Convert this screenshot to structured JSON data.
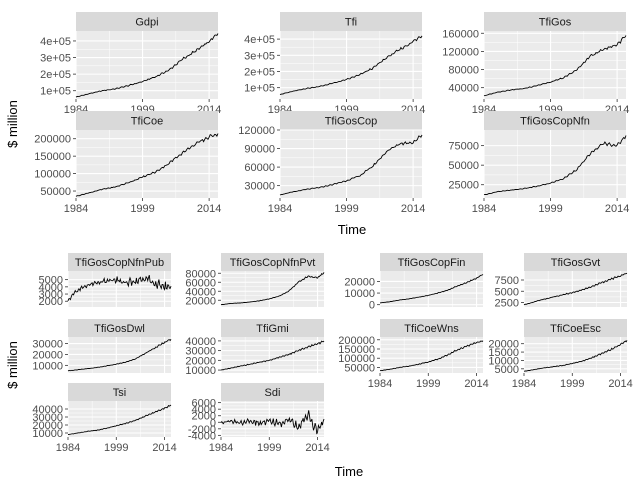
{
  "figure": {
    "background": "#ffffff",
    "panel_bg": "#ebebeb",
    "strip_bg": "#d9d9d9",
    "grid_color": "#ffffff",
    "line_color": "#000000"
  },
  "chart_data": [
    {
      "type": "line",
      "xlabel": "Time",
      "ylabel": "$ million",
      "facets": [
        {
          "name": "Gdpi",
          "xlim": [
            1984,
            2016
          ],
          "ylim": [
            50000,
            460000
          ],
          "yticks": [
            100000,
            200000,
            300000,
            400000
          ],
          "ytick_labels": [
            "1e+05",
            "2e+05",
            "3e+05",
            "4e+05"
          ],
          "xticks": [
            1984,
            1999,
            2014
          ],
          "xtick_labels": [
            "1984",
            "1999",
            "2014"
          ],
          "series": {
            "x": [
              1984,
              1987,
              1990,
              1993,
              1996,
              1999,
              2002,
              2005,
              2008,
              2011,
              2014,
              2016
            ],
            "y": [
              62000,
              82000,
              100000,
              112000,
              132000,
              155000,
              185000,
              225000,
              290000,
              340000,
              395000,
              445000
            ]
          }
        },
        {
          "name": "Tfi",
          "xlim": [
            1984,
            2016
          ],
          "ylim": [
            30000,
            450000
          ],
          "yticks": [
            100000,
            200000,
            300000,
            400000
          ],
          "ytick_labels": [
            "1e+05",
            "2e+05",
            "3e+05",
            "4e+05"
          ],
          "xticks": [
            1984,
            1999,
            2014
          ],
          "xtick_labels": [
            "1984",
            "1999",
            "2014"
          ],
          "series": {
            "x": [
              1984,
              1987,
              1990,
              1993,
              1996,
              1999,
              2002,
              2005,
              2008,
              2011,
              2014,
              2016
            ],
            "y": [
              58000,
              78000,
              95000,
              108000,
              128000,
              150000,
              180000,
              222000,
              285000,
              335000,
              385000,
              420000
            ]
          }
        },
        {
          "name": "TfiGos",
          "xlim": [
            1984,
            2016
          ],
          "ylim": [
            15000,
            165000
          ],
          "yticks": [
            40000,
            80000,
            120000,
            160000
          ],
          "ytick_labels": [
            "40000",
            "80000",
            "120000",
            "160000"
          ],
          "xticks": [
            1984,
            1999,
            2014
          ],
          "xtick_labels": [
            "1984",
            "1999",
            "2014"
          ],
          "series": {
            "x": [
              1984,
              1987,
              1990,
              1993,
              1996,
              1999,
              2002,
              2005,
              2008,
              2011,
              2014,
              2016
            ],
            "y": [
              22000,
              30000,
              35000,
              38000,
              45000,
              52000,
              62000,
              80000,
              110000,
              125000,
              135000,
              155000
            ]
          }
        },
        {
          "name": "TfiCoe",
          "xlim": [
            1984,
            2016
          ],
          "ylim": [
            30000,
            225000
          ],
          "yticks": [
            50000,
            100000,
            150000,
            200000
          ],
          "ytick_labels": [
            "50000",
            "100000",
            "150000",
            "200000"
          ],
          "xticks": [
            1984,
            1999,
            2014
          ],
          "xtick_labels": [
            "1984",
            "1999",
            "2014"
          ],
          "series": {
            "x": [
              1984,
              1987,
              1990,
              1993,
              1996,
              1999,
              2002,
              2005,
              2008,
              2011,
              2014,
              2016
            ],
            "y": [
              35000,
              45000,
              55000,
              62000,
              75000,
              90000,
              105000,
              130000,
              160000,
              185000,
              205000,
              215000
            ]
          }
        },
        {
          "name": "TfiGosCop",
          "xlim": [
            1984,
            2016
          ],
          "ylim": [
            10000,
            120000
          ],
          "yticks": [
            30000,
            60000,
            90000,
            120000
          ],
          "ytick_labels": [
            "30000",
            "60000",
            "90000",
            "120000"
          ],
          "xticks": [
            1984,
            1999,
            2014
          ],
          "xtick_labels": [
            "1984",
            "1999",
            "2014"
          ],
          "series": {
            "x": [
              1984,
              1987,
              1990,
              1993,
              1996,
              1999,
              2002,
              2005,
              2008,
              2011,
              2014,
              2016
            ],
            "y": [
              15000,
              20000,
              24000,
              27000,
              32000,
              38000,
              46000,
              62000,
              85000,
              98000,
              100000,
              112000
            ]
          }
        },
        {
          "name": "TfiGosCopNfn",
          "xlim": [
            1984,
            2016
          ],
          "ylim": [
            8000,
            95000
          ],
          "yticks": [
            25000,
            50000,
            75000
          ],
          "ytick_labels": [
            "25000",
            "50000",
            "75000"
          ],
          "xticks": [
            1984,
            1999,
            2014
          ],
          "xtick_labels": [
            "1984",
            "1999",
            "2014"
          ],
          "series": {
            "x": [
              1984,
              1987,
              1990,
              1993,
              1996,
              1999,
              2002,
              2005,
              2008,
              2011,
              2014,
              2016
            ],
            "y": [
              12000,
              16000,
              18000,
              20000,
              23000,
              27000,
              33000,
              45000,
              65000,
              78000,
              75000,
              88000
            ]
          }
        }
      ]
    },
    {
      "type": "line",
      "xlabel": "Time",
      "ylabel": "$ million",
      "facets": [
        {
          "name": "TfiGosCopNfnPub",
          "xlim": [
            1984,
            2016
          ],
          "ylim": [
            1200,
            6200
          ],
          "yticks": [
            2000,
            3000,
            4000,
            5000
          ],
          "ytick_labels": [
            "2000",
            "3000",
            "4000",
            "5000"
          ],
          "xticks": [],
          "xtick_labels": [],
          "series": {
            "x": [
              1984,
              1986,
              1988,
              1990,
              1993,
              1996,
              1999,
              2002,
              2005,
              2008,
              2011,
              2014,
              2016
            ],
            "y": [
              2000,
              3200,
              3800,
              4200,
              4600,
              4800,
              5000,
              4600,
              4800,
              5200,
              4500,
              4000,
              4100
            ]
          }
        },
        {
          "name": "TfiGosCopNfnPvt",
          "xlim": [
            1984,
            2016
          ],
          "ylim": [
            5000,
            85000
          ],
          "yticks": [
            20000,
            40000,
            60000,
            80000
          ],
          "ytick_labels": [
            "20000",
            "40000",
            "60000",
            "80000"
          ],
          "xticks": [],
          "xtick_labels": [],
          "series": {
            "x": [
              1984,
              1987,
              1990,
              1993,
              1996,
              1999,
              2002,
              2005,
              2008,
              2011,
              2014,
              2016
            ],
            "y": [
              10000,
              13000,
              14000,
              16000,
              19000,
              23000,
              29000,
              40000,
              60000,
              73000,
              70000,
              82000
            ]
          }
        },
        {
          "name": "TfiGosCopFin",
          "xlim": [
            1984,
            2016
          ],
          "ylim": [
            -2000,
            29000
          ],
          "yticks": [
            0,
            10000,
            20000
          ],
          "ytick_labels": [
            "0",
            "10000",
            "20000"
          ],
          "xticks": [],
          "xtick_labels": [],
          "series": {
            "x": [
              1984,
              1987,
              1990,
              1993,
              1996,
              1999,
              2002,
              2005,
              2008,
              2011,
              2014,
              2016
            ],
            "y": [
              1500,
              2500,
              4000,
              5000,
              6500,
              8000,
              10000,
              12500,
              16000,
              19000,
              23000,
              26000
            ]
          }
        },
        {
          "name": "TfiGosGvt",
          "xlim": [
            1984,
            2016
          ],
          "ylim": [
            1500,
            9500
          ],
          "yticks": [
            2500,
            5000,
            7500
          ],
          "ytick_labels": [
            "2500",
            "5000",
            "7500"
          ],
          "xticks": [],
          "xtick_labels": [],
          "series": {
            "x": [
              1984,
              1987,
              1990,
              1993,
              1996,
              1999,
              2002,
              2005,
              2008,
              2011,
              2014,
              2016
            ],
            "y": [
              2000,
              2600,
              3200,
              3700,
              4200,
              4700,
              5300,
              6000,
              6900,
              7700,
              8400,
              9000
            ]
          }
        },
        {
          "name": "TfiGosDwl",
          "xlim": [
            1984,
            2016
          ],
          "ylim": [
            3000,
            36000
          ],
          "yticks": [
            10000,
            20000,
            30000
          ],
          "ytick_labels": [
            "10000",
            "20000",
            "30000"
          ],
          "xticks": [],
          "xtick_labels": [],
          "series": {
            "x": [
              1984,
              1987,
              1990,
              1993,
              1996,
              1999,
              2002,
              2005,
              2008,
              2011,
              2014,
              2016
            ],
            "y": [
              5000,
              6000,
              7000,
              8000,
              9500,
              11000,
              13000,
              16000,
              21000,
              26000,
              31000,
              34000
            ]
          }
        },
        {
          "name": "TfiGmi",
          "xlim": [
            1984,
            2016
          ],
          "ylim": [
            7000,
            44000
          ],
          "yticks": [
            10000,
            20000,
            30000,
            40000
          ],
          "ytick_labels": [
            "10000",
            "20000",
            "30000",
            "40000"
          ],
          "xticks": [],
          "xtick_labels": [],
          "series": {
            "x": [
              1984,
              1987,
              1990,
              1993,
              1996,
              1999,
              2002,
              2005,
              2008,
              2011,
              2014,
              2016
            ],
            "y": [
              10000,
              12000,
              14000,
              16000,
              18000,
              20000,
              23000,
              26000,
              30000,
              34000,
              37000,
              40000
            ]
          }
        },
        {
          "name": "TfiCoeWns",
          "xlim": [
            1984,
            2016
          ],
          "ylim": [
            20000,
            215000
          ],
          "yticks": [
            50000,
            100000,
            150000,
            200000
          ],
          "ytick_labels": [
            "50000",
            "100000",
            "150000",
            "200000"
          ],
          "xticks": [
            1984,
            1999,
            2014
          ],
          "xtick_labels": [
            "1984",
            "1999",
            "2014"
          ],
          "series": {
            "x": [
              1984,
              1987,
              1990,
              1993,
              1996,
              1999,
              2002,
              2005,
              2008,
              2011,
              2014,
              2016
            ],
            "y": [
              32000,
              40000,
              50000,
              57000,
              67000,
              80000,
              95000,
              118000,
              145000,
              165000,
              185000,
              195000
            ]
          }
        },
        {
          "name": "TfiCoeEsc",
          "xlim": [
            1984,
            2016
          ],
          "ylim": [
            2500,
            24000
          ],
          "yticks": [
            5000,
            10000,
            15000,
            20000
          ],
          "ytick_labels": [
            "5000",
            "10000",
            "15000",
            "20000"
          ],
          "xticks": [
            1984,
            1999,
            2014
          ],
          "xtick_labels": [
            "1984",
            "1999",
            "2014"
          ],
          "series": {
            "x": [
              1984,
              1987,
              1990,
              1993,
              1996,
              1999,
              2002,
              2005,
              2008,
              2011,
              2014,
              2016
            ],
            "y": [
              3500,
              4500,
              5500,
              6200,
              7000,
              8200,
              9500,
              11500,
              14000,
              16500,
              19500,
              22000
            ]
          }
        },
        {
          "name": "Tsi",
          "xlim": [
            1984,
            2016
          ],
          "ylim": [
            5000,
            50000
          ],
          "yticks": [
            10000,
            20000,
            30000,
            40000
          ],
          "ytick_labels": [
            "10000",
            "20000",
            "30000",
            "40000"
          ],
          "xticks": [
            1984,
            1999,
            2014
          ],
          "xtick_labels": [
            "1984",
            "1999",
            "2014"
          ],
          "series": {
            "x": [
              1984,
              1987,
              1990,
              1993,
              1996,
              1999,
              2002,
              2005,
              2008,
              2011,
              2014,
              2016
            ],
            "y": [
              8000,
              10000,
              12000,
              13500,
              16000,
              19000,
              22000,
              26000,
              31000,
              36000,
              41000,
              45000
            ]
          }
        },
        {
          "name": "Sdi",
          "xlim": [
            1984,
            2016
          ],
          "ylim": [
            -4500,
            6500
          ],
          "yticks": [
            -4000,
            -2000,
            0,
            2000,
            4000,
            6000
          ],
          "ytick_labels": [
            "-4000",
            "-2000",
            "0",
            "2000",
            "4000",
            "6000"
          ],
          "xticks": [
            1984,
            1999,
            2014
          ],
          "xtick_labels": [
            "1984",
            "1999",
            "2014"
          ],
          "series": {
            "x": [
              1984,
              1987,
              1990,
              1993,
              1996,
              1999,
              2002,
              2005,
              2008,
              2011,
              2014,
              2016
            ],
            "y": [
              0,
              300,
              -200,
              500,
              -400,
              800,
              -600,
              1200,
              -1500,
              2500,
              -3000,
              1000
            ]
          }
        }
      ]
    }
  ]
}
